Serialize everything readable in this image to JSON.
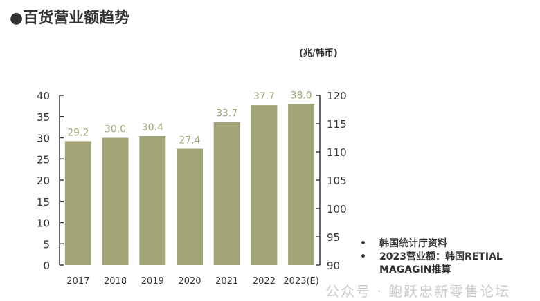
{
  "title": "●百货营业额趋势",
  "unit": "(兆/韩币)",
  "notes": [
    "韩国统计厅资料",
    "2023营业额：韩国RETIAL MAGAGIN推算"
  ],
  "note_bullet": "•",
  "watermark": "公众号 · 鲍跃忠新零售论坛",
  "colors": {
    "bar": "#a3a478",
    "label": "#a3a478",
    "axis": "#333333"
  },
  "chart_data": {
    "type": "bar",
    "categories": [
      "2017",
      "2018",
      "2019",
      "2020",
      "2021",
      "2022",
      "2023(E)"
    ],
    "values": [
      29.2,
      30.0,
      30.4,
      27.4,
      33.7,
      37.7,
      38.0
    ],
    "value_labels": [
      "29.2",
      "30.0",
      "30.4",
      "27.4",
      "33.7",
      "37.7",
      "38.0"
    ],
    "ylim": [
      0,
      40
    ],
    "yticks": [
      0,
      5,
      10,
      15,
      20,
      25,
      30,
      35,
      40
    ],
    "y2lim": [
      90,
      120
    ],
    "y2ticks": [
      90,
      95,
      100,
      105,
      110,
      115,
      120
    ],
    "ylabel": "(兆/韩币)",
    "grid": false
  }
}
